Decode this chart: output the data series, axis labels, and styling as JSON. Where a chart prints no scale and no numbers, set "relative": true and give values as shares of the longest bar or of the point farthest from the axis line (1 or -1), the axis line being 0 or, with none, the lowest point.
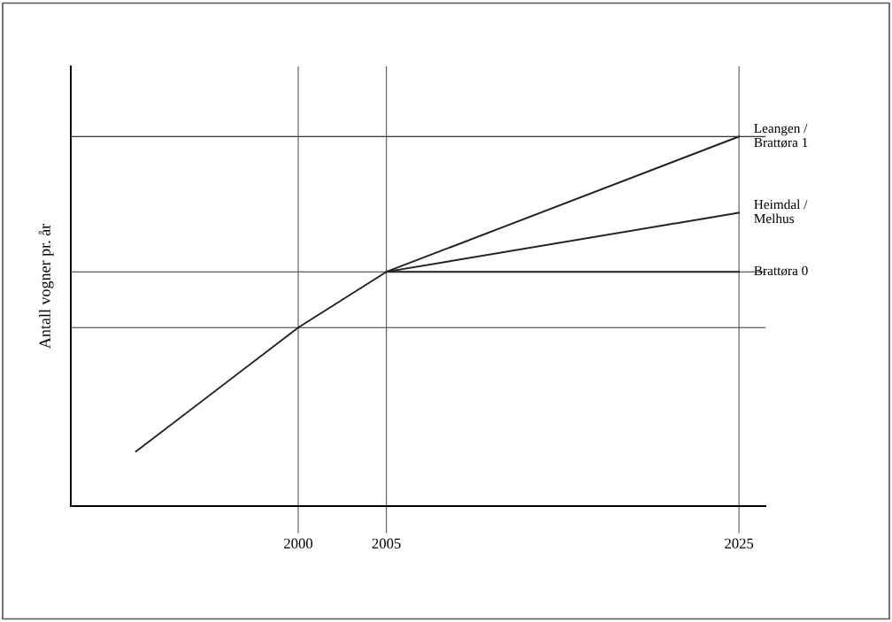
{
  "chart_data": {
    "type": "line",
    "relative": true,
    "ylabel": "Antall vogner pr. år",
    "xlim": [
      1987.1,
      2026.5
    ],
    "xticks": [
      2000,
      2005,
      2025
    ],
    "series": [
      {
        "name": "Leangen / Brattøra 1",
        "color": "#222222",
        "x": [
          1990.8,
          2000,
          2005,
          2025
        ],
        "values": [
          0.148,
          0.483,
          0.634,
          1.0
        ]
      },
      {
        "name": "Heimdal / Melhus",
        "color": "#222222",
        "x": [
          2005,
          2025
        ],
        "values": [
          0.634,
          0.794
        ]
      },
      {
        "name": "Brattøra 0",
        "color": "#222222",
        "x": [
          2005,
          2025
        ],
        "values": [
          0.634,
          0.634
        ]
      }
    ],
    "ref_lines": [
      {
        "axis": "y",
        "value": 1.0,
        "color": "#333333"
      },
      {
        "axis": "y",
        "value": 0.634,
        "color": "#333333"
      },
      {
        "axis": "y",
        "value": 0.483,
        "color": "#333333"
      },
      {
        "axis": "x",
        "value": 2000,
        "color": "#555555"
      },
      {
        "axis": "x",
        "value": 2005,
        "color": "#555555"
      },
      {
        "axis": "x",
        "value": 2025,
        "color": "#555555"
      }
    ],
    "grid": false,
    "legend": false,
    "marker": "none",
    "line_style": "solid"
  }
}
